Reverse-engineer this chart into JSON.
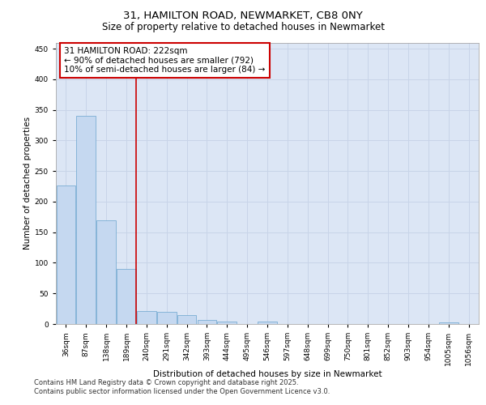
{
  "title_line1": "31, HAMILTON ROAD, NEWMARKET, CB8 0NY",
  "title_line2": "Size of property relative to detached houses in Newmarket",
  "xlabel": "Distribution of detached houses by size in Newmarket",
  "ylabel": "Number of detached properties",
  "bar_values": [
    226,
    340,
    170,
    90,
    21,
    20,
    15,
    7,
    4,
    0,
    4,
    0,
    0,
    0,
    0,
    0,
    0,
    0,
    0,
    2,
    0
  ],
  "categories": [
    "36sqm",
    "87sqm",
    "138sqm",
    "189sqm",
    "240sqm",
    "291sqm",
    "342sqm",
    "393sqm",
    "444sqm",
    "495sqm",
    "546sqm",
    "597sqm",
    "648sqm",
    "699sqm",
    "750sqm",
    "801sqm",
    "852sqm",
    "903sqm",
    "954sqm",
    "1005sqm",
    "1056sqm"
  ],
  "bar_color": "#c5d8f0",
  "bar_edge_color": "#7aadd4",
  "grid_color": "#c8d4e8",
  "background_color": "#dce6f5",
  "vline_x": 4.0,
  "vline_color": "#cc0000",
  "annotation_text": "31 HAMILTON ROAD: 222sqm\n← 90% of detached houses are smaller (792)\n10% of semi-detached houses are larger (84) →",
  "annotation_box_color": "#cc0000",
  "ylim": [
    0,
    460
  ],
  "yticks": [
    0,
    50,
    100,
    150,
    200,
    250,
    300,
    350,
    400,
    450
  ],
  "footer_line1": "Contains HM Land Registry data © Crown copyright and database right 2025.",
  "footer_line2": "Contains public sector information licensed under the Open Government Licence v3.0.",
  "title_fontsize": 9.5,
  "subtitle_fontsize": 8.5,
  "axis_label_fontsize": 7.5,
  "tick_fontsize": 6.5,
  "annotation_fontsize": 7.5,
  "footer_fontsize": 6.0
}
